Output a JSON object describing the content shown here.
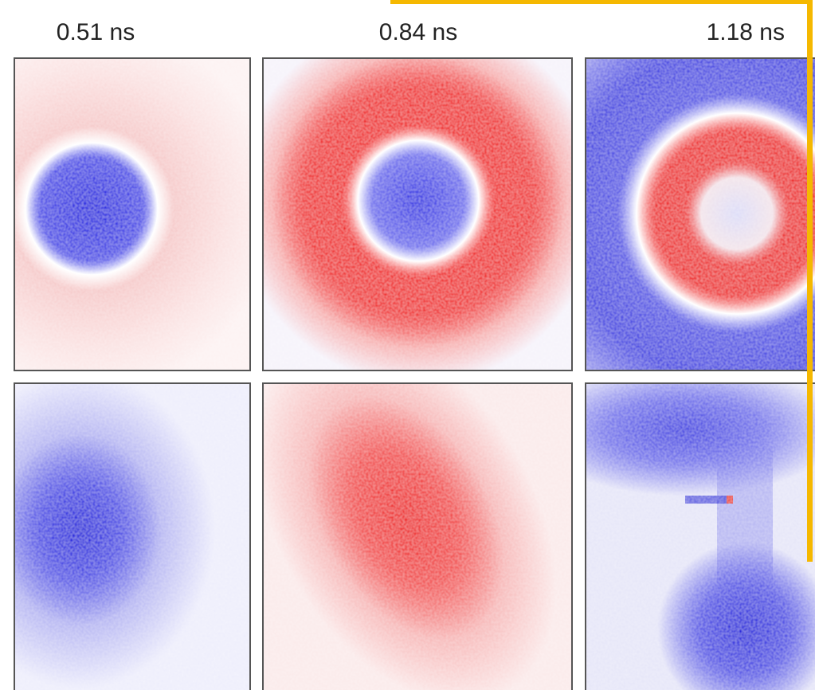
{
  "column_labels": [
    "0.51 ns",
    "0.84 ns",
    "1.18 ns"
  ]
}
